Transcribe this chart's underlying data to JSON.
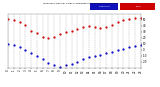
{
  "title": "Milwaukee Weather Outdoor Temperature vs Dew Point (24 Hours)",
  "temp_color": "#cc0000",
  "dew_color": "#0000cc",
  "legend_bg_blue": "#1111bb",
  "legend_bg_red": "#cc0000",
  "background_color": "#ffffff",
  "grid_color": "#999999",
  "xlim": [
    0,
    23
  ],
  "ylim": [
    -30,
    60
  ],
  "x_ticks": [
    0,
    1,
    2,
    3,
    4,
    5,
    6,
    7,
    8,
    9,
    10,
    11,
    12,
    13,
    14,
    15,
    16,
    17,
    18,
    19,
    20,
    21,
    22,
    23
  ],
  "y_ticks": [
    -20,
    -10,
    0,
    10,
    20,
    30,
    40,
    50
  ],
  "temp_values": [
    52,
    50,
    46,
    42,
    32,
    28,
    22,
    20,
    22,
    26,
    30,
    32,
    35,
    38,
    40,
    38,
    36,
    38,
    42,
    46,
    50,
    52,
    54,
    54
  ],
  "dew_values": [
    10,
    8,
    4,
    0,
    -5,
    -10,
    -16,
    -22,
    -26,
    -28,
    -26,
    -24,
    -20,
    -16,
    -12,
    -10,
    -8,
    -6,
    -4,
    0,
    2,
    4,
    6,
    8
  ]
}
